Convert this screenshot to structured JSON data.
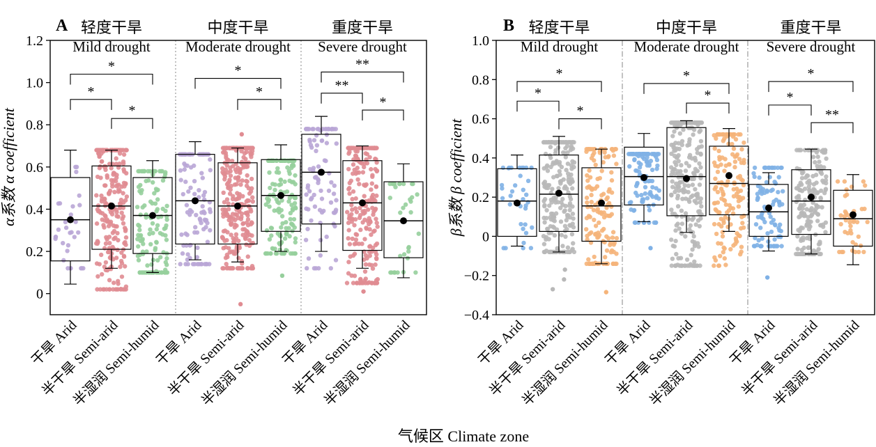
{
  "figure": {
    "xlabel_shared": "气候区 Climate zone"
  },
  "colors": {
    "arid_A": "#b9a6d6",
    "semi_arid_A": "#e08c92",
    "semi_humid_A": "#96cf9c",
    "arid_B": "#7fb1e6",
    "semi_arid_B": "#b8b8b8",
    "semi_humid_B": "#f5b47a",
    "mean_marker": "#000000",
    "axis": "#000000",
    "divider": "#999999"
  },
  "chart_data": [
    {
      "panel": "A",
      "type": "boxplot",
      "ylabel": "α系数 α coefficient",
      "ylim": [
        -0.1,
        1.2
      ],
      "yticks": [
        "0",
        "0.2",
        "0.4",
        "0.6",
        "0.8",
        "1.0",
        "1.2"
      ],
      "divider_style": "dotted",
      "groups": [
        {
          "title_zh": "轻度干旱",
          "title_en": "Mild drought",
          "boxes": [
            {
              "category": "干旱 Arid",
              "whisker_low": 0.045,
              "q1": 0.155,
              "median": 0.35,
              "q3": 0.55,
              "whisker_high": 0.68,
              "mean": 0.35,
              "n": 30,
              "min": 0.12,
              "max": 0.6,
              "outliers": []
            },
            {
              "category": "半干旱 Semi-arid",
              "whisker_low": 0.12,
              "q1": 0.21,
              "median": 0.415,
              "q3": 0.605,
              "whisker_high": 0.68,
              "mean": 0.415,
              "n": 240,
              "min": 0.02,
              "max": 0.68,
              "outliers": []
            },
            {
              "category": "半湿润 Semi-humid",
              "whisker_low": 0.1,
              "q1": 0.19,
              "median": 0.37,
              "q3": 0.55,
              "whisker_high": 0.63,
              "mean": 0.37,
              "n": 130,
              "min": 0.1,
              "max": 0.58,
              "outliers": []
            }
          ],
          "significance": [
            {
              "from": 0,
              "to": 1,
              "y": 0.92,
              "label": "*"
            },
            {
              "from": 1,
              "to": 2,
              "y": 0.83,
              "label": "*"
            },
            {
              "from": 0,
              "to": 2,
              "y": 1.04,
              "label": "*"
            }
          ]
        },
        {
          "title_zh": "中度干旱",
          "title_en": "Moderate drought",
          "boxes": [
            {
              "category": "干旱 Arid",
              "whisker_low": 0.16,
              "q1": 0.235,
              "median": 0.44,
              "q3": 0.66,
              "whisker_high": 0.72,
              "mean": 0.44,
              "n": 110,
              "min": 0.14,
              "max": 0.66,
              "outliers": []
            },
            {
              "category": "半干旱 Semi-arid",
              "whisker_low": 0.15,
              "q1": 0.235,
              "median": 0.415,
              "q3": 0.62,
              "whisker_high": 0.69,
              "mean": 0.415,
              "n": 280,
              "min": 0.12,
              "max": 0.69,
              "outliers": [
                -0.05,
                0.755
              ]
            },
            {
              "category": "半湿润 Semi-humid",
              "whisker_low": 0.2,
              "q1": 0.295,
              "median": 0.465,
              "q3": 0.635,
              "whisker_high": 0.705,
              "mean": 0.465,
              "n": 150,
              "min": 0.19,
              "max": 0.63,
              "outliers": [
                0.085
              ]
            }
          ],
          "significance": [
            {
              "from": 1,
              "to": 2,
              "y": 0.92,
              "label": "*"
            },
            {
              "from": 0,
              "to": 2,
              "y": 1.02,
              "label": "*"
            }
          ]
        },
        {
          "title_zh": "重度干旱",
          "title_en": "Severe drought",
          "boxes": [
            {
              "category": "干旱 Arid",
              "whisker_low": 0.2,
              "q1": 0.33,
              "median": 0.575,
              "q3": 0.755,
              "whisker_high": 0.84,
              "mean": 0.575,
              "n": 90,
              "min": 0.12,
              "max": 0.78,
              "outliers": []
            },
            {
              "category": "半干旱 Semi-arid",
              "whisker_low": 0.12,
              "q1": 0.205,
              "median": 0.43,
              "q3": 0.63,
              "whisker_high": 0.7,
              "mean": 0.43,
              "n": 230,
              "min": 0.05,
              "max": 0.69,
              "outliers": [
                0.01
              ]
            },
            {
              "category": "半湿润 Semi-humid",
              "whisker_low": 0.075,
              "q1": 0.17,
              "median": 0.345,
              "q3": 0.53,
              "whisker_high": 0.615,
              "mean": 0.345,
              "n": 35,
              "min": 0.1,
              "max": 0.52,
              "outliers": []
            }
          ],
          "significance": [
            {
              "from": 0,
              "to": 1,
              "y": 0.95,
              "label": "**"
            },
            {
              "from": 1,
              "to": 2,
              "y": 0.87,
              "label": "*"
            },
            {
              "from": 0,
              "to": 2,
              "y": 1.05,
              "label": "**"
            }
          ]
        }
      ]
    },
    {
      "panel": "B",
      "type": "boxplot",
      "ylabel": "β系数 β coefficient",
      "ylim": [
        -0.4,
        1.0
      ],
      "yticks": [
        "−0.4",
        "−0.2",
        "0",
        "0.2",
        "0.4",
        "0.6",
        "0.8",
        "1.0"
      ],
      "divider_style": "dashdot",
      "groups": [
        {
          "title_zh": "轻度干旱",
          "title_en": "Mild drought",
          "boxes": [
            {
              "category": "干旱 Arid",
              "whisker_low": -0.05,
              "q1": 0.0,
              "median": 0.18,
              "q3": 0.345,
              "whisker_high": 0.415,
              "mean": 0.17,
              "n": 35,
              "min": -0.06,
              "max": 0.35,
              "outliers": []
            },
            {
              "category": "半干旱 Semi-arid",
              "whisker_low": -0.08,
              "q1": 0.025,
              "median": 0.215,
              "q3": 0.415,
              "whisker_high": 0.51,
              "mean": 0.22,
              "n": 230,
              "min": -0.08,
              "max": 0.48,
              "outliers": [
                -0.27,
                -0.22,
                -0.17
              ]
            },
            {
              "category": "半湿润 Semi-humid",
              "whisker_low": -0.14,
              "q1": -0.025,
              "median": 0.155,
              "q3": 0.35,
              "whisker_high": 0.445,
              "mean": 0.17,
              "n": 140,
              "min": -0.14,
              "max": 0.445,
              "outliers": [
                -0.285
              ]
            }
          ],
          "significance": [
            {
              "from": 0,
              "to": 1,
              "y": 0.69,
              "label": "*"
            },
            {
              "from": 1,
              "to": 2,
              "y": 0.6,
              "label": "*"
            },
            {
              "from": 0,
              "to": 2,
              "y": 0.79,
              "label": "*"
            }
          ]
        },
        {
          "title_zh": "中度干旱",
          "title_en": "Moderate drought",
          "boxes": [
            {
              "category": "干旱 Arid",
              "whisker_low": 0.075,
              "q1": 0.16,
              "median": 0.305,
              "q3": 0.455,
              "whisker_high": 0.525,
              "mean": 0.3,
              "n": 110,
              "min": 0.07,
              "max": 0.42,
              "outliers": [
                -0.06
              ]
            },
            {
              "category": "半干旱 Semi-arid",
              "whisker_low": 0.02,
              "q1": 0.105,
              "median": 0.305,
              "q3": 0.555,
              "whisker_high": 0.59,
              "mean": 0.295,
              "n": 260,
              "min": -0.15,
              "max": 0.58,
              "outliers": []
            },
            {
              "category": "半湿润 Semi-humid",
              "whisker_low": 0.025,
              "q1": 0.11,
              "median": 0.27,
              "q3": 0.46,
              "whisker_high": 0.55,
              "mean": 0.31,
              "n": 150,
              "min": -0.15,
              "max": 0.52,
              "outliers": []
            }
          ],
          "significance": [
            {
              "from": 1,
              "to": 2,
              "y": 0.68,
              "label": "*"
            },
            {
              "from": 0,
              "to": 2,
              "y": 0.78,
              "label": "*"
            }
          ]
        },
        {
          "title_zh": "重度干旱",
          "title_en": "Severe drought",
          "boxes": [
            {
              "category": "干旱 Arid",
              "whisker_low": -0.075,
              "q1": 0.0,
              "median": 0.125,
              "q3": 0.265,
              "whisker_high": 0.325,
              "mean": 0.145,
              "n": 90,
              "min": -0.05,
              "max": 0.35,
              "outliers": [
                -0.21
              ]
            },
            {
              "category": "半干旱 Semi-arid",
              "whisker_low": -0.09,
              "q1": 0.01,
              "median": 0.18,
              "q3": 0.34,
              "whisker_high": 0.445,
              "mean": 0.2,
              "n": 190,
              "min": -0.09,
              "max": 0.44,
              "outliers": []
            },
            {
              "category": "半湿润 Semi-humid",
              "whisker_low": -0.145,
              "q1": -0.05,
              "median": 0.09,
              "q3": 0.235,
              "whisker_high": 0.315,
              "mean": 0.11,
              "n": 40,
              "min": -0.08,
              "max": 0.28,
              "outliers": []
            }
          ],
          "significance": [
            {
              "from": 0,
              "to": 1,
              "y": 0.67,
              "label": "*"
            },
            {
              "from": 1,
              "to": 2,
              "y": 0.58,
              "label": "**"
            },
            {
              "from": 0,
              "to": 2,
              "y": 0.79,
              "label": "*"
            }
          ]
        }
      ]
    }
  ]
}
